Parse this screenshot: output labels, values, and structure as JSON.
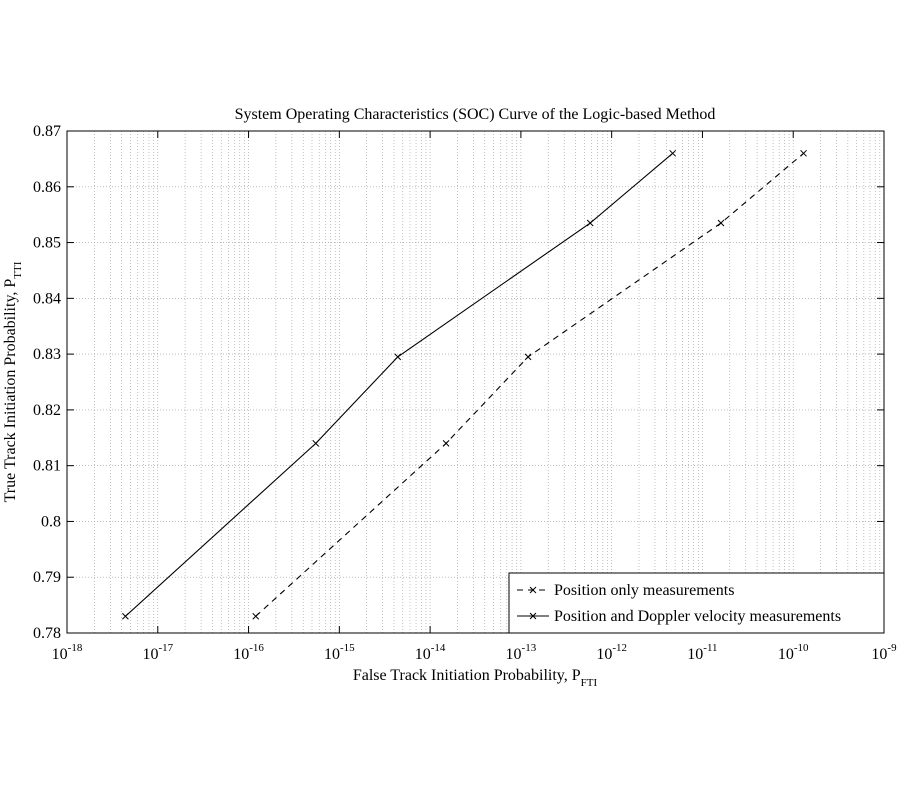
{
  "chart_data": {
    "type": "line",
    "title": "System Operating Characteristics (SOC) Curve of the Logic-based Method",
    "xlabel": {
      "text": "False Track Initiation Probability, P",
      "subscript": "FTI"
    },
    "ylabel": {
      "text": "True Track Initiation Probability, P",
      "subscript": "TTI"
    },
    "xscale": "log",
    "xlim": [
      1e-18,
      1e-09
    ],
    "xticks": [
      {
        "value": 1e-18,
        "label": "10",
        "exponent": "-18"
      },
      {
        "value": 1e-17,
        "label": "10",
        "exponent": "-17"
      },
      {
        "value": 1e-16,
        "label": "10",
        "exponent": "-16"
      },
      {
        "value": 1e-15,
        "label": "10",
        "exponent": "-15"
      },
      {
        "value": 1e-14,
        "label": "10",
        "exponent": "-14"
      },
      {
        "value": 1e-13,
        "label": "10",
        "exponent": "-13"
      },
      {
        "value": 1e-12,
        "label": "10",
        "exponent": "-12"
      },
      {
        "value": 1e-11,
        "label": "10",
        "exponent": "-11"
      },
      {
        "value": 1e-10,
        "label": "10",
        "exponent": "-10"
      },
      {
        "value": 1e-09,
        "label": "10",
        "exponent": "-9"
      }
    ],
    "ylim": [
      0.78,
      0.87
    ],
    "yticks": [
      0.78,
      0.79,
      0.8,
      0.81,
      0.82,
      0.83,
      0.84,
      0.85,
      0.86,
      0.87
    ],
    "grid": true,
    "legend": "lower right",
    "series": [
      {
        "name": "Position only measurements",
        "color": "#000000",
        "linestyle": "dashed",
        "x": [
          1.2e-16,
          1.5e-14,
          1.2e-13,
          1.6e-11,
          1.3e-10
        ],
        "values": [
          0.783,
          0.814,
          0.8295,
          0.8535,
          0.866
        ]
      },
      {
        "name": "Position and Doppler velocity measurements",
        "color": "#000000",
        "linestyle": "solid",
        "x": [
          4.4e-18,
          5.5e-16,
          4.4e-15,
          5.8e-13,
          4.7e-12
        ],
        "values": [
          0.783,
          0.814,
          0.8295,
          0.8535,
          0.866
        ]
      }
    ]
  }
}
